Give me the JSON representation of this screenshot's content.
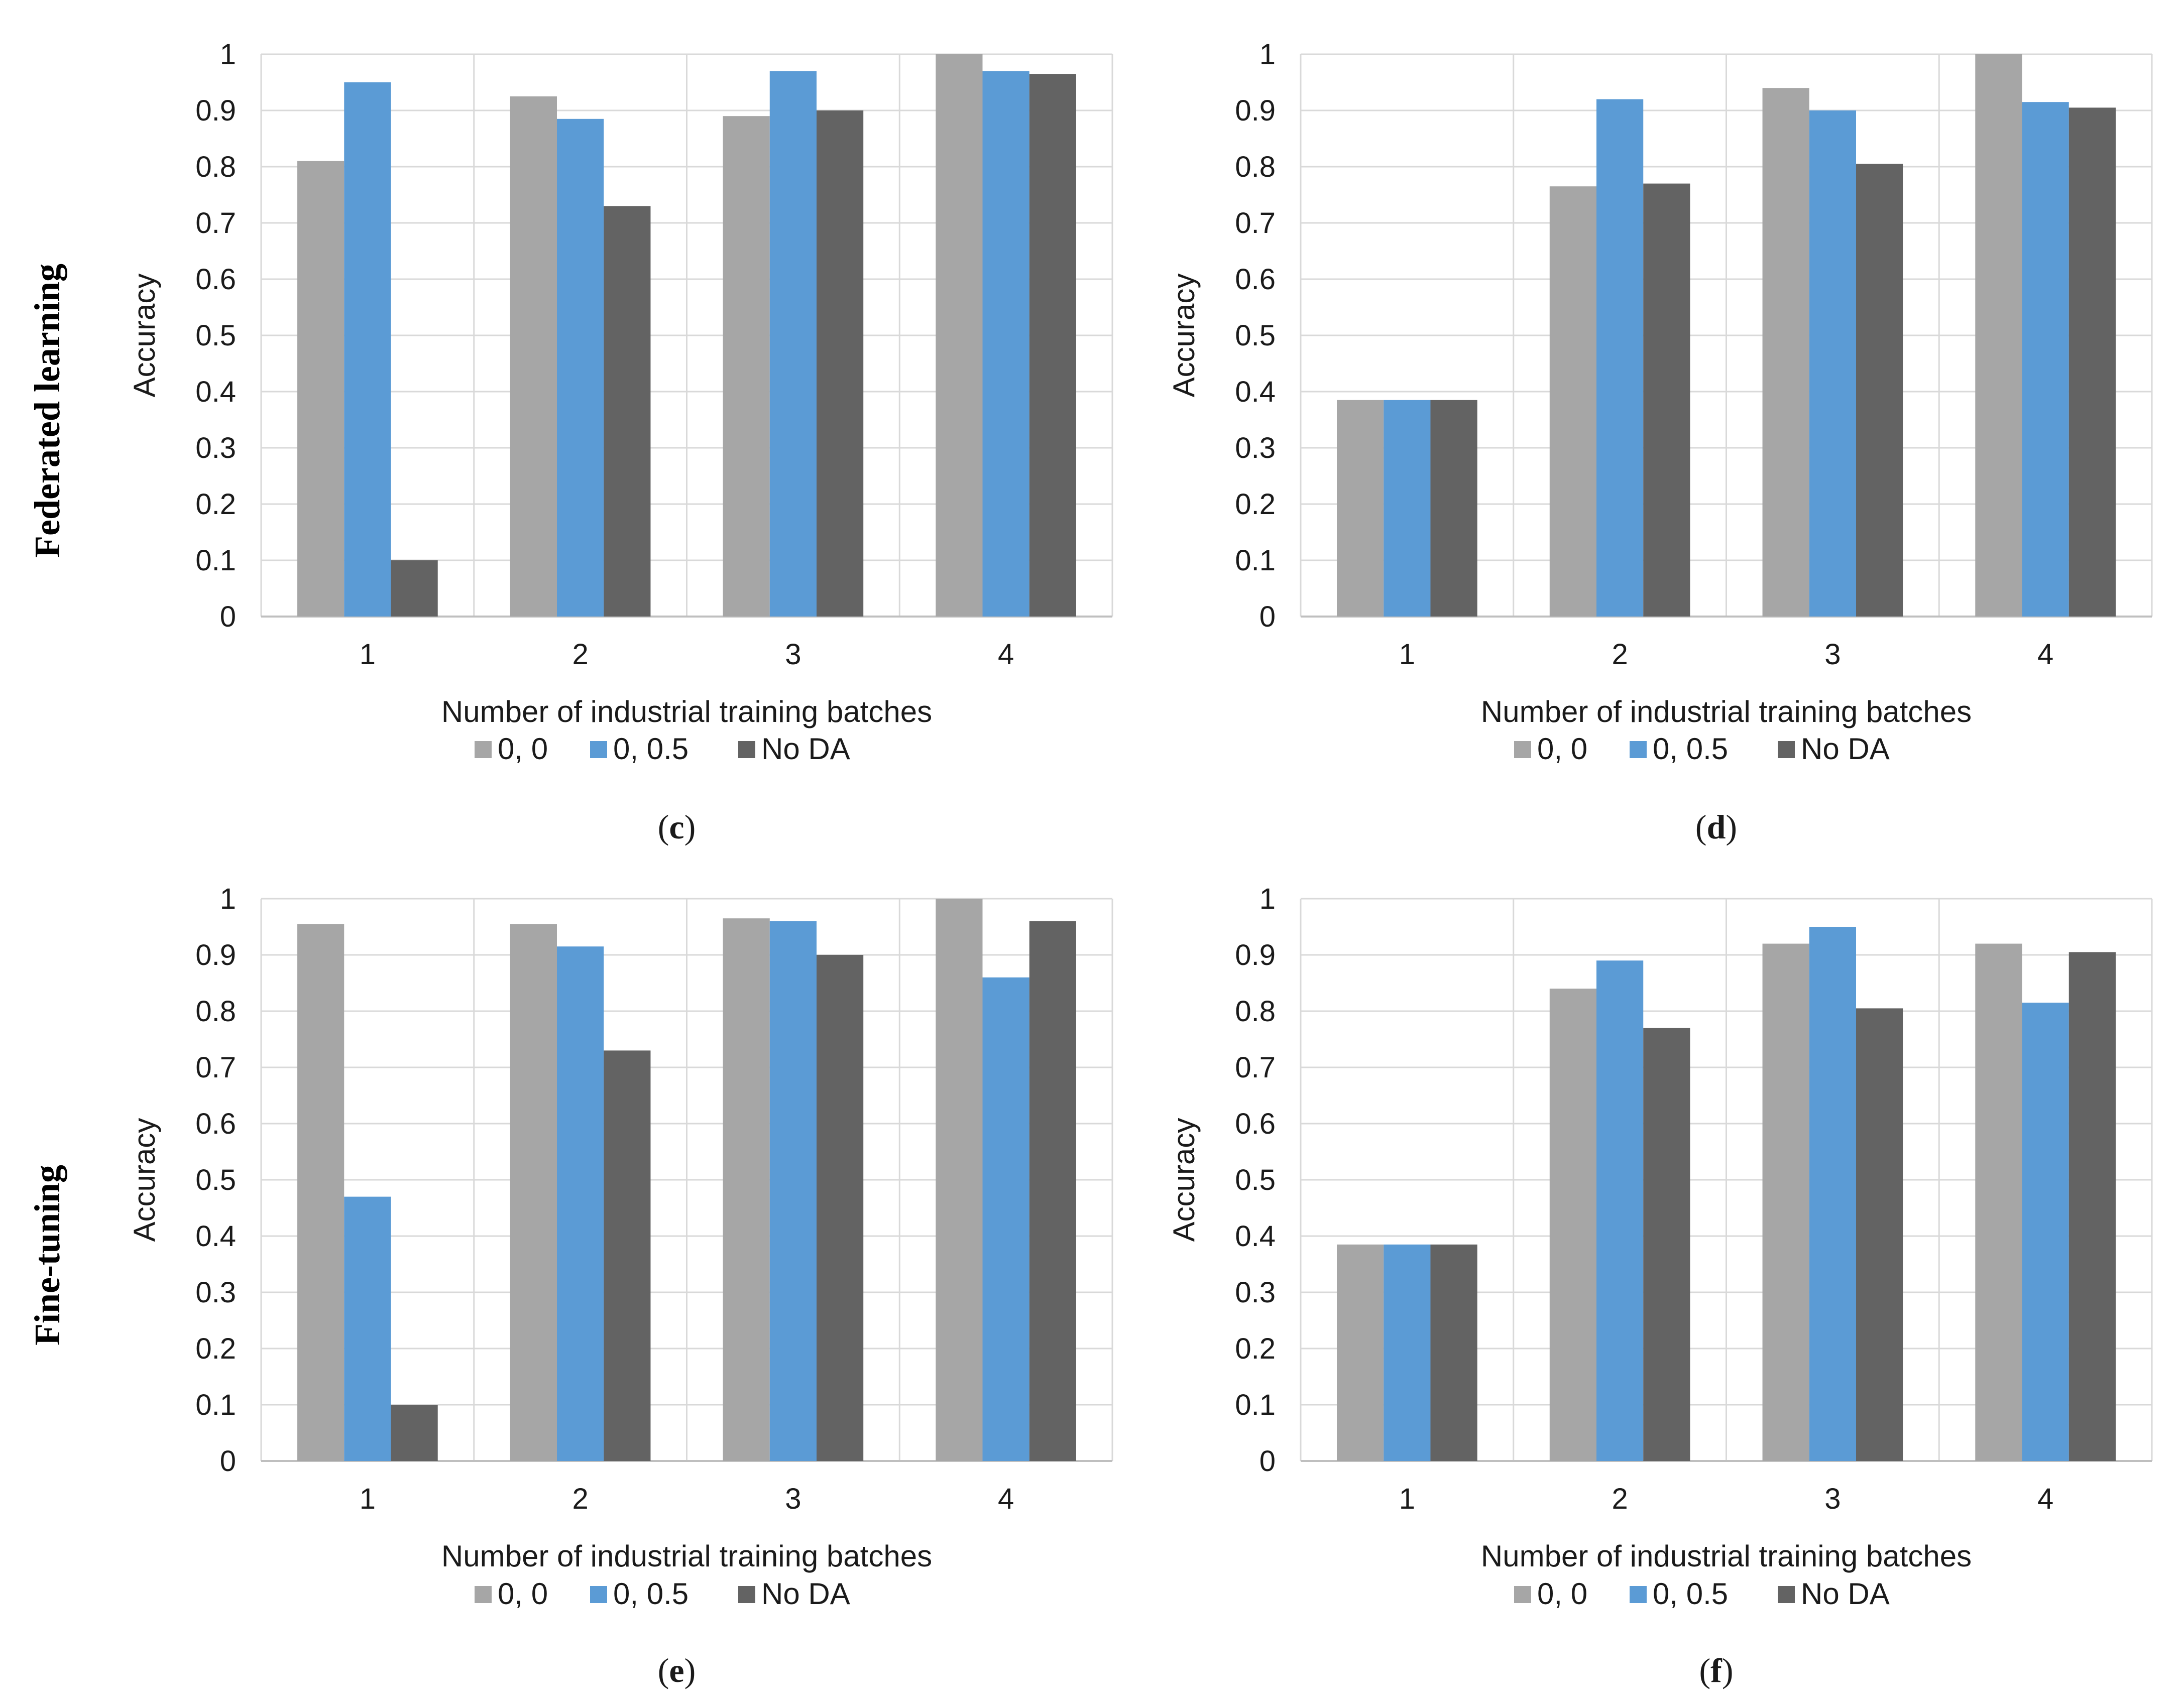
{
  "row_labels": [
    "Federated learning",
    "Fine-tuning"
  ],
  "colors": {
    "series_0_0": "#a6a6a6",
    "series_0_05": "#5b9bd5",
    "series_nada": "#636363",
    "grid": "#d9d9d9",
    "text": "#1a1a1a"
  },
  "chart_data": [
    {
      "panel": "c",
      "type": "bar",
      "title": "",
      "xlabel": "Number of industrial training batches",
      "ylabel": "Accuracy",
      "ylim": [
        0,
        1
      ],
      "yticks": [
        "0",
        "0.1",
        "0.2",
        "0.3",
        "0.4",
        "0.5",
        "0.6",
        "0.7",
        "0.8",
        "0.9",
        "1"
      ],
      "grid": true,
      "legend_position": "bottom",
      "categories": [
        "1",
        "2",
        "3",
        "4"
      ],
      "series": [
        {
          "name": "0, 0",
          "values": [
            0.81,
            0.925,
            0.89,
            1.0
          ]
        },
        {
          "name": "0, 0.5",
          "values": [
            0.95,
            0.885,
            0.97,
            0.97
          ]
        },
        {
          "name": "No DA",
          "values": [
            0.1,
            0.73,
            0.9,
            0.965
          ]
        }
      ]
    },
    {
      "panel": "d",
      "type": "bar",
      "title": "",
      "xlabel": "Number of industrial training batches",
      "ylabel": "Accuracy",
      "ylim": [
        0,
        1
      ],
      "yticks": [
        "0",
        "0.1",
        "0.2",
        "0.3",
        "0.4",
        "0.5",
        "0.6",
        "0.7",
        "0.8",
        "0.9",
        "1"
      ],
      "grid": true,
      "legend_position": "bottom",
      "categories": [
        "1",
        "2",
        "3",
        "4"
      ],
      "series": [
        {
          "name": "0, 0",
          "values": [
            0.385,
            0.765,
            0.94,
            1.0
          ]
        },
        {
          "name": "0, 0.5",
          "values": [
            0.385,
            0.92,
            0.9,
            0.915
          ]
        },
        {
          "name": "No DA",
          "values": [
            0.385,
            0.77,
            0.805,
            0.905
          ]
        }
      ]
    },
    {
      "panel": "e",
      "type": "bar",
      "title": "",
      "xlabel": "Number of industrial training batches",
      "ylabel": "Accuracy",
      "ylim": [
        0,
        1
      ],
      "yticks": [
        "0",
        "0.1",
        "0.2",
        "0.3",
        "0.4",
        "0.5",
        "0.6",
        "0.7",
        "0.8",
        "0.9",
        "1"
      ],
      "grid": true,
      "legend_position": "bottom",
      "categories": [
        "1",
        "2",
        "3",
        "4"
      ],
      "series": [
        {
          "name": "0, 0",
          "values": [
            0.955,
            0.955,
            0.965,
            1.0
          ]
        },
        {
          "name": "0, 0.5",
          "values": [
            0.47,
            0.915,
            0.96,
            0.86
          ]
        },
        {
          "name": "No DA",
          "values": [
            0.1,
            0.73,
            0.9,
            0.96
          ]
        }
      ]
    },
    {
      "panel": "f",
      "type": "bar",
      "title": "",
      "xlabel": "Number of industrial training batches",
      "ylabel": "Accuracy",
      "ylim": [
        0,
        1
      ],
      "yticks": [
        "0",
        "0.1",
        "0.2",
        "0.3",
        "0.4",
        "0.5",
        "0.6",
        "0.7",
        "0.8",
        "0.9",
        "1"
      ],
      "grid": true,
      "legend_position": "bottom",
      "categories": [
        "1",
        "2",
        "3",
        "4"
      ],
      "series": [
        {
          "name": "0, 0",
          "values": [
            0.385,
            0.84,
            0.92,
            0.92
          ]
        },
        {
          "name": "0, 0.5",
          "values": [
            0.385,
            0.89,
            0.95,
            0.815
          ]
        },
        {
          "name": "No DA",
          "values": [
            0.385,
            0.77,
            0.805,
            0.905
          ]
        }
      ]
    }
  ]
}
